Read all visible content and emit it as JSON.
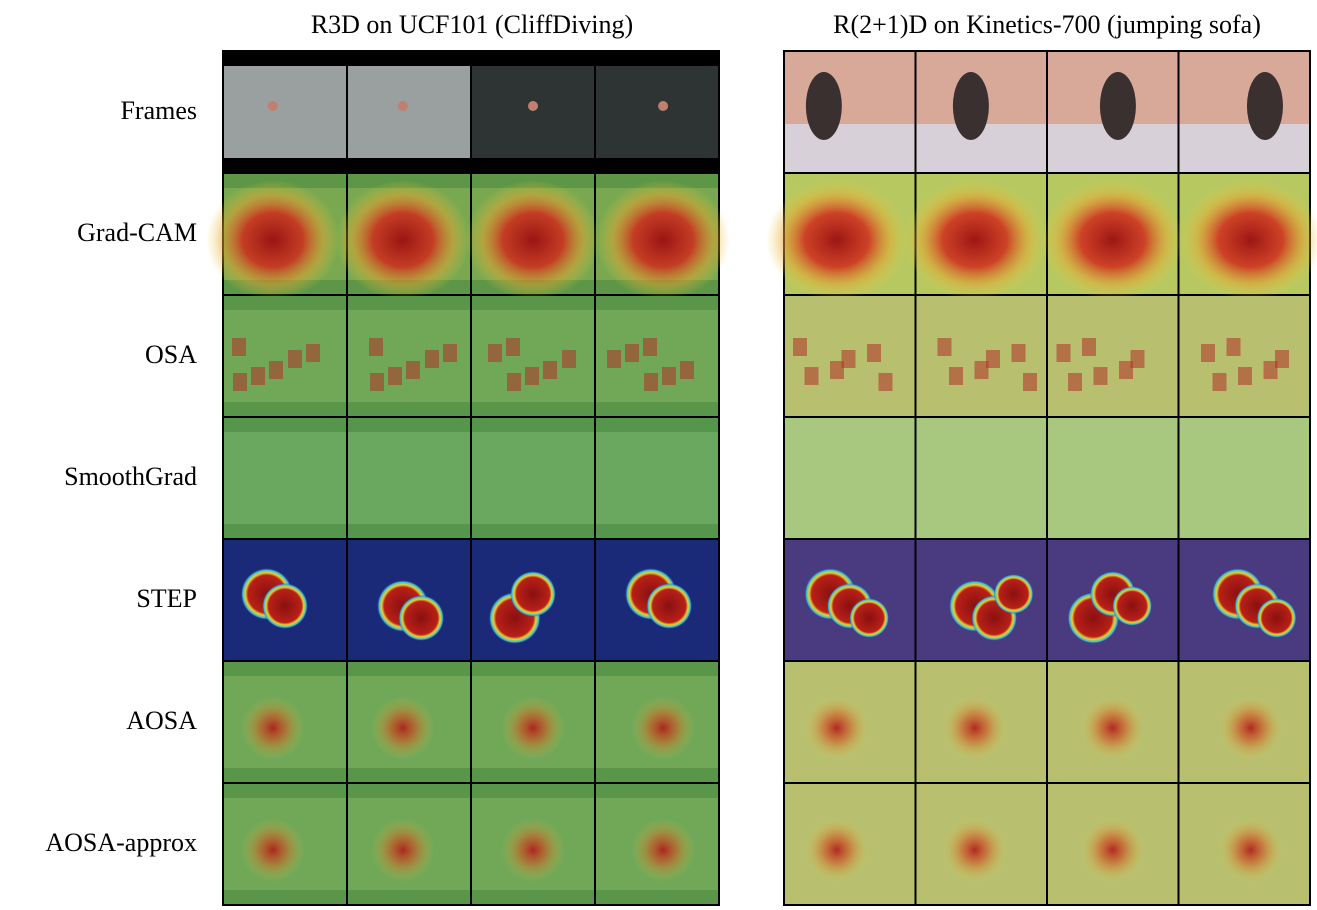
{
  "columns": [
    {
      "title": "R3D on UCF101 (CliffDiving)"
    },
    {
      "title": "R(2+1)D on Kinetics-700 (jumping sofa)"
    }
  ],
  "rows": [
    {
      "label": "Frames"
    },
    {
      "label": "Grad-CAM"
    },
    {
      "label": "OSA"
    },
    {
      "label": "SmoothGrad"
    },
    {
      "label": "STEP"
    },
    {
      "label": "AOSA"
    },
    {
      "label": "AOSA-approx"
    }
  ]
}
